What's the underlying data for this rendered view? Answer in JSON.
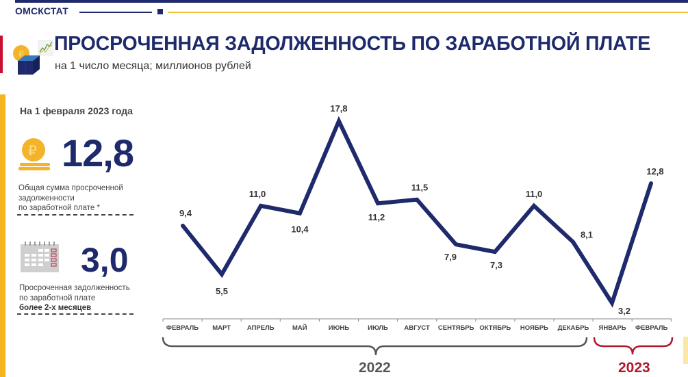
{
  "header": {
    "brand": "ОМСКСТАТ",
    "title": "ПРОСРОЧЕННАЯ ЗАДОЛЖЕННОСТЬ ПО ЗАРАБОТНОЙ ПЛАТЕ",
    "subtitle": "на 1 число месяца; миллионов рублей"
  },
  "sidebar": {
    "date_label": "На 1 февраля 2023 года",
    "stat1": {
      "value": "12,8",
      "desc_line1": "Общая сумма просроченной",
      "desc_line2": "задолженности",
      "desc_line3": "по заработной плате *",
      "icon": "ruble-coin-icon"
    },
    "stat2": {
      "value": "3,0",
      "desc_line1": "Просроченная задолженность",
      "desc_line2": "по заработной плате",
      "desc_line3": "более 2-х месяцев",
      "icon": "calendar-icon"
    }
  },
  "colors": {
    "primary": "#1e2a6b",
    "accent_gold": "#f5b51c",
    "accent_red": "#b0182e",
    "line": "#1e2a6b"
  },
  "chart_data": {
    "type": "line",
    "title": "ПРОСРОЧЕННАЯ ЗАДОЛЖЕННОСТЬ ПО ЗАРАБОТНОЙ ПЛАТЕ",
    "subtitle": "на 1 число месяца; миллионов рублей",
    "xlabel": "",
    "ylabel": "миллионов рублей",
    "grid": false,
    "categories": [
      "ФЕВРАЛЬ",
      "МАРТ",
      "АПРЕЛЬ",
      "МАЙ",
      "ИЮНЬ",
      "ИЮЛЬ",
      "АВГУСТ",
      "СЕНТЯБРЬ",
      "ОКТЯБРЬ",
      "НОЯБРЬ",
      "ДЕКАБРЬ",
      "ЯНВАРЬ",
      "ФЕВРАЛЬ"
    ],
    "values": [
      9.4,
      5.5,
      11.0,
      10.4,
      17.8,
      11.2,
      11.5,
      7.9,
      7.3,
      11.0,
      8.1,
      3.2,
      12.8
    ],
    "labels": [
      "9,4",
      "5,5",
      "11,0",
      "10,4",
      "17,8",
      "11,2",
      "11,5",
      "7,9",
      "7,3",
      "11,0",
      "8,1",
      "3,2",
      "12,8"
    ],
    "year_groups": [
      {
        "label": "2022",
        "from": 0,
        "to": 10
      },
      {
        "label": "2023",
        "from": 11,
        "to": 12
      }
    ]
  }
}
